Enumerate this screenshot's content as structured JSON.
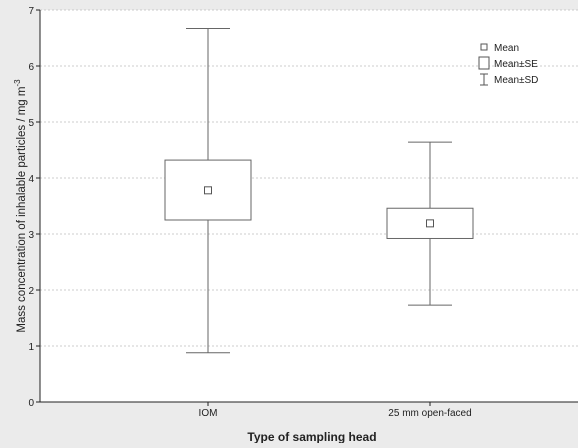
{
  "chart_data": {
    "type": "box",
    "xlabel": "Type of sampling head",
    "ylabel": "Mass concentration of inhalable particles / mg m",
    "ylabel_superscript": "-3",
    "ylim": [
      0,
      7
    ],
    "yticks": [
      "0",
      "1",
      "2",
      "3",
      "4",
      "5",
      "6",
      "7"
    ],
    "grid": true,
    "legend_position": "top-right",
    "legend": [
      {
        "label": "Mean",
        "symbol": "square-marker"
      },
      {
        "label": "Mean±SE",
        "symbol": "box"
      },
      {
        "label": "Mean±SD",
        "symbol": "whisker"
      }
    ],
    "categories": [
      "IOM",
      "25 mm open-faced"
    ],
    "groups": [
      {
        "category": "IOM",
        "mean": 3.78,
        "mean_minus_se": 3.25,
        "mean_plus_se": 4.32,
        "mean_minus_sd": 0.88,
        "mean_plus_sd": 6.67
      },
      {
        "category": "25 mm open-faced",
        "mean": 3.19,
        "mean_minus_se": 2.92,
        "mean_plus_se": 3.46,
        "mean_minus_sd": 1.73,
        "mean_plus_sd": 4.64
      }
    ]
  }
}
